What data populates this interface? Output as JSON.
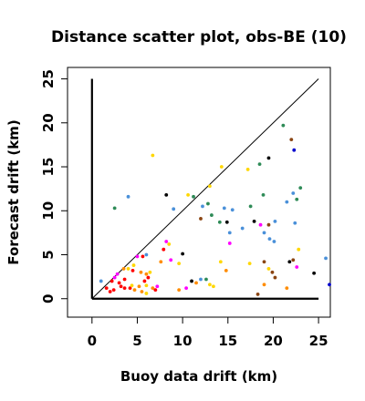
{
  "chart_data": {
    "type": "scatter",
    "title": "Distance scatter plot, obs-BE (10)",
    "xlabel": "Buoy data drift (km)",
    "ylabel": "Forecast drift (km)",
    "xlim": [
      -2.7,
      26.3
    ],
    "ylim": [
      -2.1,
      26.3
    ],
    "xticks": [
      0,
      5,
      10,
      15,
      20,
      25
    ],
    "yticks": [
      0,
      5,
      10,
      15,
      20,
      25
    ],
    "reference_lines": [
      "x = 0",
      "y = 0",
      "y = x"
    ],
    "grid": false,
    "legend": "none",
    "points": [
      {
        "x": 2.5,
        "y": 10.3,
        "color": "#2e8b57"
      },
      {
        "x": 4.0,
        "y": 11.6,
        "color": "#4a90d9"
      },
      {
        "x": 6.7,
        "y": 16.3,
        "color": "#ffd700"
      },
      {
        "x": 8.2,
        "y": 11.8,
        "color": "#000000"
      },
      {
        "x": 9.0,
        "y": 10.2,
        "color": "#4a90d9"
      },
      {
        "x": 10.6,
        "y": 11.8,
        "color": "#ffd700"
      },
      {
        "x": 11.2,
        "y": 11.6,
        "color": "#2e8b57"
      },
      {
        "x": 12.2,
        "y": 10.5,
        "color": "#4a90d9"
      },
      {
        "x": 12.8,
        "y": 10.8,
        "color": "#2e8b57"
      },
      {
        "x": 13.0,
        "y": 12.8,
        "color": "#ffd700"
      },
      {
        "x": 14.3,
        "y": 15.0,
        "color": "#ffd700"
      },
      {
        "x": 14.6,
        "y": 10.3,
        "color": "#4a90d9"
      },
      {
        "x": 15.5,
        "y": 10.1,
        "color": "#4a90d9"
      },
      {
        "x": 17.2,
        "y": 14.7,
        "color": "#ffd700"
      },
      {
        "x": 17.5,
        "y": 10.5,
        "color": "#2e8b57"
      },
      {
        "x": 18.5,
        "y": 15.3,
        "color": "#2e8b57"
      },
      {
        "x": 19.5,
        "y": 16.0,
        "color": "#000000"
      },
      {
        "x": 18.9,
        "y": 11.8,
        "color": "#2e8b57"
      },
      {
        "x": 21.1,
        "y": 19.7,
        "color": "#2e8b57"
      },
      {
        "x": 22.0,
        "y": 18.1,
        "color": "#8b4513"
      },
      {
        "x": 22.3,
        "y": 16.9,
        "color": "#0000cd"
      },
      {
        "x": 21.5,
        "y": 11.0,
        "color": "#4a90d9"
      },
      {
        "x": 22.6,
        "y": 11.3,
        "color": "#2e8b57"
      },
      {
        "x": 23.0,
        "y": 12.6,
        "color": "#2e8b57"
      },
      {
        "x": 22.2,
        "y": 12.0,
        "color": "#4a90d9"
      },
      {
        "x": 12.0,
        "y": 9.1,
        "color": "#8b4513"
      },
      {
        "x": 13.2,
        "y": 9.5,
        "color": "#2e8b57"
      },
      {
        "x": 14.1,
        "y": 8.7,
        "color": "#2e8b57"
      },
      {
        "x": 14.9,
        "y": 8.7,
        "color": "#000000"
      },
      {
        "x": 15.2,
        "y": 7.5,
        "color": "#4a90d9"
      },
      {
        "x": 16.6,
        "y": 8.0,
        "color": "#4a90d9"
      },
      {
        "x": 17.9,
        "y": 8.8,
        "color": "#000000"
      },
      {
        "x": 18.6,
        "y": 8.4,
        "color": "#ff00ff"
      },
      {
        "x": 19.5,
        "y": 8.4,
        "color": "#8b4513"
      },
      {
        "x": 20.2,
        "y": 8.8,
        "color": "#4a90d9"
      },
      {
        "x": 19.0,
        "y": 7.5,
        "color": "#4a90d9"
      },
      {
        "x": 19.6,
        "y": 6.8,
        "color": "#4a90d9"
      },
      {
        "x": 20.1,
        "y": 6.5,
        "color": "#4a90d9"
      },
      {
        "x": 22.4,
        "y": 8.6,
        "color": "#4a90d9"
      },
      {
        "x": 15.2,
        "y": 6.3,
        "color": "#ff00ff"
      },
      {
        "x": 22.8,
        "y": 5.6,
        "color": "#ffd700"
      },
      {
        "x": 21.8,
        "y": 4.2,
        "color": "#000000"
      },
      {
        "x": 22.2,
        "y": 4.4,
        "color": "#8b4513"
      },
      {
        "x": 22.6,
        "y": 3.6,
        "color": "#ff00ff"
      },
      {
        "x": 19.0,
        "y": 4.2,
        "color": "#8b4513"
      },
      {
        "x": 19.5,
        "y": 3.4,
        "color": "#ffd700"
      },
      {
        "x": 19.9,
        "y": 3.0,
        "color": "#8b4513"
      },
      {
        "x": 20.2,
        "y": 2.4,
        "color": "#8b4513"
      },
      {
        "x": 17.4,
        "y": 4.0,
        "color": "#ffd700"
      },
      {
        "x": 24.5,
        "y": 2.9,
        "color": "#000000"
      },
      {
        "x": 25.8,
        "y": 4.6,
        "color": "#4a90d9"
      },
      {
        "x": 26.2,
        "y": 1.6,
        "color": "#0000cd"
      },
      {
        "x": 18.3,
        "y": 0.5,
        "color": "#8b4513"
      },
      {
        "x": 19.0,
        "y": 1.6,
        "color": "#ff8c00"
      },
      {
        "x": 21.5,
        "y": 1.2,
        "color": "#ff8c00"
      },
      {
        "x": 14.2,
        "y": 4.2,
        "color": "#ffd700"
      },
      {
        "x": 14.8,
        "y": 3.2,
        "color": "#ff8c00"
      },
      {
        "x": 13.0,
        "y": 1.6,
        "color": "#ffd700"
      },
      {
        "x": 13.4,
        "y": 1.4,
        "color": "#ffd700"
      },
      {
        "x": 12.0,
        "y": 2.2,
        "color": "#4a90d9"
      },
      {
        "x": 12.6,
        "y": 2.2,
        "color": "#2e8b57"
      },
      {
        "x": 11.5,
        "y": 1.8,
        "color": "#ff8c00"
      },
      {
        "x": 11.0,
        "y": 2.0,
        "color": "#000000"
      },
      {
        "x": 10.0,
        "y": 5.1,
        "color": "#000000"
      },
      {
        "x": 8.7,
        "y": 4.4,
        "color": "#ff00ff"
      },
      {
        "x": 9.6,
        "y": 4.0,
        "color": "#ffd700"
      },
      {
        "x": 10.4,
        "y": 1.2,
        "color": "#ff00ff"
      },
      {
        "x": 9.6,
        "y": 1.0,
        "color": "#ff8c00"
      },
      {
        "x": 8.2,
        "y": 6.5,
        "color": "#ff00ff"
      },
      {
        "x": 8.5,
        "y": 6.2,
        "color": "#ffd700"
      },
      {
        "x": 7.9,
        "y": 5.6,
        "color": "#ff0000"
      },
      {
        "x": 7.6,
        "y": 4.2,
        "color": "#ff8c00"
      },
      {
        "x": 6.0,
        "y": 5.0,
        "color": "#4a90d9"
      },
      {
        "x": 5.6,
        "y": 4.8,
        "color": "#ff0000"
      },
      {
        "x": 5.0,
        "y": 4.8,
        "color": "#ff00ff"
      },
      {
        "x": 4.6,
        "y": 3.8,
        "color": "#ffd700"
      },
      {
        "x": 4.0,
        "y": 3.4,
        "color": "#ffd700"
      },
      {
        "x": 3.5,
        "y": 3.4,
        "color": "#ff8c00"
      },
      {
        "x": 4.5,
        "y": 3.2,
        "color": "#ff0000"
      },
      {
        "x": 5.4,
        "y": 3.0,
        "color": "#ff8c00"
      },
      {
        "x": 6.0,
        "y": 2.8,
        "color": "#ff8c00"
      },
      {
        "x": 6.4,
        "y": 3.0,
        "color": "#ffd700"
      },
      {
        "x": 6.2,
        "y": 2.4,
        "color": "#ff0000"
      },
      {
        "x": 5.8,
        "y": 2.0,
        "color": "#ff0000"
      },
      {
        "x": 2.8,
        "y": 2.8,
        "color": "#ff00ff"
      },
      {
        "x": 2.5,
        "y": 2.4,
        "color": "#ff00ff"
      },
      {
        "x": 3.0,
        "y": 1.8,
        "color": "#ff0000"
      },
      {
        "x": 3.6,
        "y": 2.2,
        "color": "#ff0000"
      },
      {
        "x": 2.2,
        "y": 2.0,
        "color": "#ff0000"
      },
      {
        "x": 1.6,
        "y": 1.2,
        "color": "#ff0000"
      },
      {
        "x": 2.4,
        "y": 1.0,
        "color": "#ff0000"
      },
      {
        "x": 3.2,
        "y": 1.4,
        "color": "#ff0000"
      },
      {
        "x": 3.6,
        "y": 1.2,
        "color": "#ff0000"
      },
      {
        "x": 4.2,
        "y": 1.2,
        "color": "#ff0000"
      },
      {
        "x": 4.7,
        "y": 1.0,
        "color": "#ff8c00"
      },
      {
        "x": 4.4,
        "y": 1.5,
        "color": "#ffd700"
      },
      {
        "x": 5.2,
        "y": 1.4,
        "color": "#ff8c00"
      },
      {
        "x": 6.0,
        "y": 1.5,
        "color": "#ffd700"
      },
      {
        "x": 6.7,
        "y": 1.2,
        "color": "#ff8c00"
      },
      {
        "x": 7.0,
        "y": 1.0,
        "color": "#ff0000"
      },
      {
        "x": 7.2,
        "y": 1.4,
        "color": "#ff00ff"
      },
      {
        "x": 6.0,
        "y": 0.6,
        "color": "#ffd700"
      },
      {
        "x": 5.5,
        "y": 0.8,
        "color": "#ff8c00"
      },
      {
        "x": 2.0,
        "y": 0.8,
        "color": "#ff0000"
      },
      {
        "x": 1.0,
        "y": 2.0,
        "color": "#4a90d9"
      }
    ]
  }
}
